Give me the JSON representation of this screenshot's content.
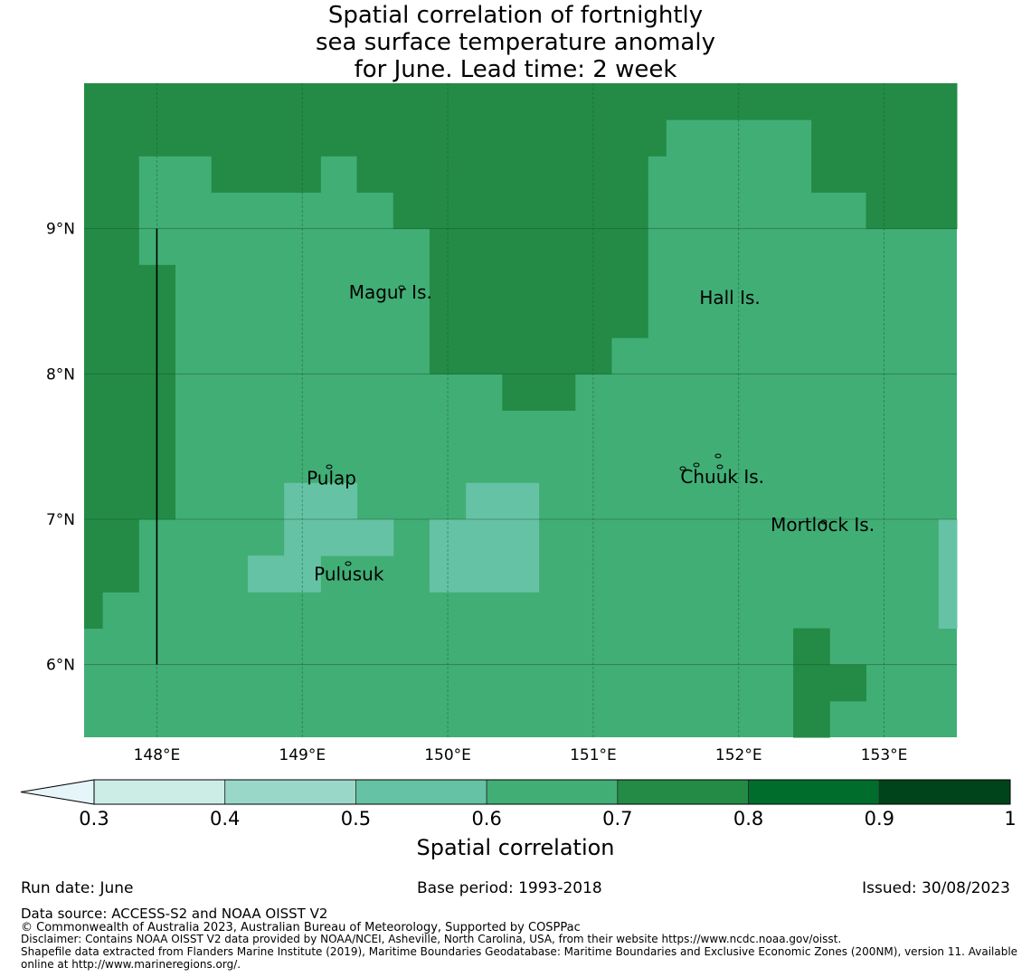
{
  "title_lines": [
    "Spatial correlation of fortnightly",
    "sea surface temperature anomaly",
    "for June. Lead time: 2 week"
  ],
  "map": {
    "lon_range": [
      147.5,
      153.5
    ],
    "lat_range": [
      5.5,
      10.0
    ],
    "cell_size_deg": 0.25,
    "x_ticks": [
      148,
      149,
      150,
      151,
      152,
      153
    ],
    "x_tick_labels": [
      "148°E",
      "149°E",
      "150°E",
      "151°E",
      "152°E",
      "153°E"
    ],
    "y_ticks": [
      6,
      7,
      8,
      9
    ],
    "y_tick_labels": [
      "6°N",
      "7°N",
      "8°N",
      "9°N"
    ],
    "grid": true,
    "places": [
      {
        "label": "Magur Is.",
        "lon": 149.32,
        "lat": 8.52
      },
      {
        "label": "Hall Is.",
        "lon": 151.73,
        "lat": 8.48
      },
      {
        "label": "Pulap",
        "lon": 149.03,
        "lat": 7.24
      },
      {
        "label": "Chuuk Is.",
        "lon": 151.6,
        "lat": 7.25
      },
      {
        "label": "Mortlock Is.",
        "lon": 152.22,
        "lat": 6.92
      },
      {
        "label": "Pulusuk",
        "lon": 149.08,
        "lat": 6.58
      }
    ],
    "meridian_line": {
      "lon": 148.0,
      "lat_from": 6.0,
      "lat_to": 9.0
    },
    "background_class": 0.6,
    "regions": [
      {
        "value": 0.7,
        "lon": [
          147.5,
          153.5
        ],
        "lat": [
          9.75,
          10.0
        ]
      },
      {
        "value": 0.7,
        "lon": [
          147.5,
          151.5
        ],
        "lat": [
          9.5,
          9.75
        ]
      },
      {
        "value": 0.7,
        "lon": [
          152.5,
          153.5
        ],
        "lat": [
          9.5,
          9.75
        ]
      },
      {
        "value": 0.7,
        "lon": [
          147.5,
          147.875
        ],
        "lat": [
          9.0,
          9.5
        ]
      },
      {
        "value": 0.7,
        "lon": [
          148.375,
          149.125
        ],
        "lat": [
          9.25,
          9.5
        ]
      },
      {
        "value": 0.7,
        "lon": [
          149.375,
          151.375
        ],
        "lat": [
          9.25,
          9.5
        ]
      },
      {
        "value": 0.7,
        "lon": [
          152.5,
          153.5
        ],
        "lat": [
          9.25,
          9.5
        ]
      },
      {
        "value": 0.7,
        "lon": [
          149.625,
          151.375
        ],
        "lat": [
          9.0,
          9.25
        ]
      },
      {
        "value": 0.7,
        "lon": [
          152.875,
          153.5
        ],
        "lat": [
          9.0,
          9.25
        ]
      },
      {
        "value": 0.7,
        "lon": [
          147.5,
          147.875
        ],
        "lat": [
          8.75,
          9.0
        ]
      },
      {
        "value": 0.7,
        "lon": [
          149.875,
          150.875
        ],
        "lat": [
          8.0,
          9.0
        ]
      },
      {
        "value": 0.7,
        "lon": [
          150.875,
          151.375
        ],
        "lat": [
          8.25,
          9.0
        ]
      },
      {
        "value": 0.7,
        "lon": [
          150.875,
          151.125
        ],
        "lat": [
          8.0,
          8.25
        ]
      },
      {
        "value": 0.7,
        "lon": [
          150.375,
          150.875
        ],
        "lat": [
          7.75,
          8.0
        ]
      },
      {
        "value": 0.7,
        "lon": [
          147.5,
          148.125
        ],
        "lat": [
          7.0,
          8.75
        ]
      },
      {
        "value": 0.7,
        "lon": [
          147.5,
          147.875
        ],
        "lat": [
          6.5,
          7.0
        ]
      },
      {
        "value": 0.7,
        "lon": [
          147.5,
          147.625
        ],
        "lat": [
          6.25,
          6.5
        ]
      },
      {
        "value": 0.7,
        "lon": [
          152.375,
          152.625
        ],
        "lat": [
          5.5,
          6.25
        ]
      },
      {
        "value": 0.7,
        "lon": [
          152.625,
          152.875
        ],
        "lat": [
          5.75,
          6.0
        ]
      },
      {
        "value": 0.5,
        "lon": [
          148.875,
          149.375
        ],
        "lat": [
          7.0,
          7.25
        ]
      },
      {
        "value": 0.5,
        "lon": [
          148.875,
          149.625
        ],
        "lat": [
          6.75,
          7.0
        ]
      },
      {
        "value": 0.5,
        "lon": [
          148.625,
          149.125
        ],
        "lat": [
          6.5,
          6.75
        ]
      },
      {
        "value": 0.5,
        "lon": [
          150.125,
          150.625
        ],
        "lat": [
          7.0,
          7.25
        ]
      },
      {
        "value": 0.5,
        "lon": [
          149.875,
          150.625
        ],
        "lat": [
          6.5,
          7.0
        ]
      },
      {
        "value": 0.5,
        "lon": [
          153.375,
          153.5
        ],
        "lat": [
          6.25,
          7.0
        ]
      }
    ]
  },
  "colorbar": {
    "label": "Spatial correlation",
    "bounds": [
      0.3,
      0.4,
      0.5,
      0.6,
      0.7,
      0.8,
      0.9,
      1.0
    ],
    "tick_labels": [
      "0.3",
      "0.4",
      "0.5",
      "0.6",
      "0.7",
      "0.8",
      "0.9",
      "1"
    ],
    "colors": [
      "#ccece6",
      "#99d8c9",
      "#66c2a4",
      "#41ae76",
      "#238b45",
      "#006d2c",
      "#00441b"
    ],
    "under_color": "#e5f5f9",
    "extend": "min"
  },
  "footer": {
    "run_date": "Run date: June",
    "base_period": "Base period: 1993-2018",
    "issued": "Issued: 30/08/2023",
    "data_source": "Data source: ACCESS-S2 and NOAA OISST V2",
    "copyright": "© Commonwealth of Australia 2023, Australian Bureau of Meteorology, Supported by COSPPac",
    "disclaimer": "Disclaimer: Contains NOAA OISST V2 data provided by NOAA/NCEI, Asheville, North Carolina, USA, from their website https://www.ncdc.noaa.gov/oisst.",
    "shapefile_note": "Shapefile data extracted from Flanders Marine Institute (2019), Maritime Boundaries Geodatabase: Maritime Boundaries and Exclusive Economic Zones (200NM), version 11. Available online at http://www.marineregions.org/."
  }
}
